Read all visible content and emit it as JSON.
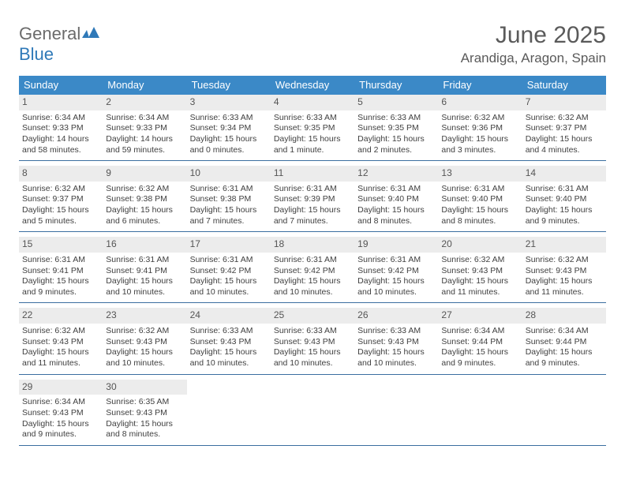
{
  "brand": {
    "part1": "General",
    "part2": "Blue"
  },
  "title": "June 2025",
  "location": "Arandiga, Aragon, Spain",
  "colors": {
    "header_bg": "#3b89c7",
    "header_text": "#ffffff",
    "daynum_bg": "#ececec",
    "rule": "#3b6ea0",
    "brand_gray": "#6b6b6b",
    "brand_blue": "#2f79b8"
  },
  "weekdays": [
    "Sunday",
    "Monday",
    "Tuesday",
    "Wednesday",
    "Thursday",
    "Friday",
    "Saturday"
  ],
  "weeks": [
    [
      {
        "n": "1",
        "sr": "Sunrise: 6:34 AM",
        "ss": "Sunset: 9:33 PM",
        "dl": "Daylight: 14 hours and 58 minutes."
      },
      {
        "n": "2",
        "sr": "Sunrise: 6:34 AM",
        "ss": "Sunset: 9:33 PM",
        "dl": "Daylight: 14 hours and 59 minutes."
      },
      {
        "n": "3",
        "sr": "Sunrise: 6:33 AM",
        "ss": "Sunset: 9:34 PM",
        "dl": "Daylight: 15 hours and 0 minutes."
      },
      {
        "n": "4",
        "sr": "Sunrise: 6:33 AM",
        "ss": "Sunset: 9:35 PM",
        "dl": "Daylight: 15 hours and 1 minute."
      },
      {
        "n": "5",
        "sr": "Sunrise: 6:33 AM",
        "ss": "Sunset: 9:35 PM",
        "dl": "Daylight: 15 hours and 2 minutes."
      },
      {
        "n": "6",
        "sr": "Sunrise: 6:32 AM",
        "ss": "Sunset: 9:36 PM",
        "dl": "Daylight: 15 hours and 3 minutes."
      },
      {
        "n": "7",
        "sr": "Sunrise: 6:32 AM",
        "ss": "Sunset: 9:37 PM",
        "dl": "Daylight: 15 hours and 4 minutes."
      }
    ],
    [
      {
        "n": "8",
        "sr": "Sunrise: 6:32 AM",
        "ss": "Sunset: 9:37 PM",
        "dl": "Daylight: 15 hours and 5 minutes."
      },
      {
        "n": "9",
        "sr": "Sunrise: 6:32 AM",
        "ss": "Sunset: 9:38 PM",
        "dl": "Daylight: 15 hours and 6 minutes."
      },
      {
        "n": "10",
        "sr": "Sunrise: 6:31 AM",
        "ss": "Sunset: 9:38 PM",
        "dl": "Daylight: 15 hours and 7 minutes."
      },
      {
        "n": "11",
        "sr": "Sunrise: 6:31 AM",
        "ss": "Sunset: 9:39 PM",
        "dl": "Daylight: 15 hours and 7 minutes."
      },
      {
        "n": "12",
        "sr": "Sunrise: 6:31 AM",
        "ss": "Sunset: 9:40 PM",
        "dl": "Daylight: 15 hours and 8 minutes."
      },
      {
        "n": "13",
        "sr": "Sunrise: 6:31 AM",
        "ss": "Sunset: 9:40 PM",
        "dl": "Daylight: 15 hours and 8 minutes."
      },
      {
        "n": "14",
        "sr": "Sunrise: 6:31 AM",
        "ss": "Sunset: 9:40 PM",
        "dl": "Daylight: 15 hours and 9 minutes."
      }
    ],
    [
      {
        "n": "15",
        "sr": "Sunrise: 6:31 AM",
        "ss": "Sunset: 9:41 PM",
        "dl": "Daylight: 15 hours and 9 minutes."
      },
      {
        "n": "16",
        "sr": "Sunrise: 6:31 AM",
        "ss": "Sunset: 9:41 PM",
        "dl": "Daylight: 15 hours and 10 minutes."
      },
      {
        "n": "17",
        "sr": "Sunrise: 6:31 AM",
        "ss": "Sunset: 9:42 PM",
        "dl": "Daylight: 15 hours and 10 minutes."
      },
      {
        "n": "18",
        "sr": "Sunrise: 6:31 AM",
        "ss": "Sunset: 9:42 PM",
        "dl": "Daylight: 15 hours and 10 minutes."
      },
      {
        "n": "19",
        "sr": "Sunrise: 6:31 AM",
        "ss": "Sunset: 9:42 PM",
        "dl": "Daylight: 15 hours and 10 minutes."
      },
      {
        "n": "20",
        "sr": "Sunrise: 6:32 AM",
        "ss": "Sunset: 9:43 PM",
        "dl": "Daylight: 15 hours and 11 minutes."
      },
      {
        "n": "21",
        "sr": "Sunrise: 6:32 AM",
        "ss": "Sunset: 9:43 PM",
        "dl": "Daylight: 15 hours and 11 minutes."
      }
    ],
    [
      {
        "n": "22",
        "sr": "Sunrise: 6:32 AM",
        "ss": "Sunset: 9:43 PM",
        "dl": "Daylight: 15 hours and 11 minutes."
      },
      {
        "n": "23",
        "sr": "Sunrise: 6:32 AM",
        "ss": "Sunset: 9:43 PM",
        "dl": "Daylight: 15 hours and 10 minutes."
      },
      {
        "n": "24",
        "sr": "Sunrise: 6:33 AM",
        "ss": "Sunset: 9:43 PM",
        "dl": "Daylight: 15 hours and 10 minutes."
      },
      {
        "n": "25",
        "sr": "Sunrise: 6:33 AM",
        "ss": "Sunset: 9:43 PM",
        "dl": "Daylight: 15 hours and 10 minutes."
      },
      {
        "n": "26",
        "sr": "Sunrise: 6:33 AM",
        "ss": "Sunset: 9:43 PM",
        "dl": "Daylight: 15 hours and 10 minutes."
      },
      {
        "n": "27",
        "sr": "Sunrise: 6:34 AM",
        "ss": "Sunset: 9:44 PM",
        "dl": "Daylight: 15 hours and 9 minutes."
      },
      {
        "n": "28",
        "sr": "Sunrise: 6:34 AM",
        "ss": "Sunset: 9:44 PM",
        "dl": "Daylight: 15 hours and 9 minutes."
      }
    ],
    [
      {
        "n": "29",
        "sr": "Sunrise: 6:34 AM",
        "ss": "Sunset: 9:43 PM",
        "dl": "Daylight: 15 hours and 9 minutes."
      },
      {
        "n": "30",
        "sr": "Sunrise: 6:35 AM",
        "ss": "Sunset: 9:43 PM",
        "dl": "Daylight: 15 hours and 8 minutes."
      },
      null,
      null,
      null,
      null,
      null
    ]
  ]
}
